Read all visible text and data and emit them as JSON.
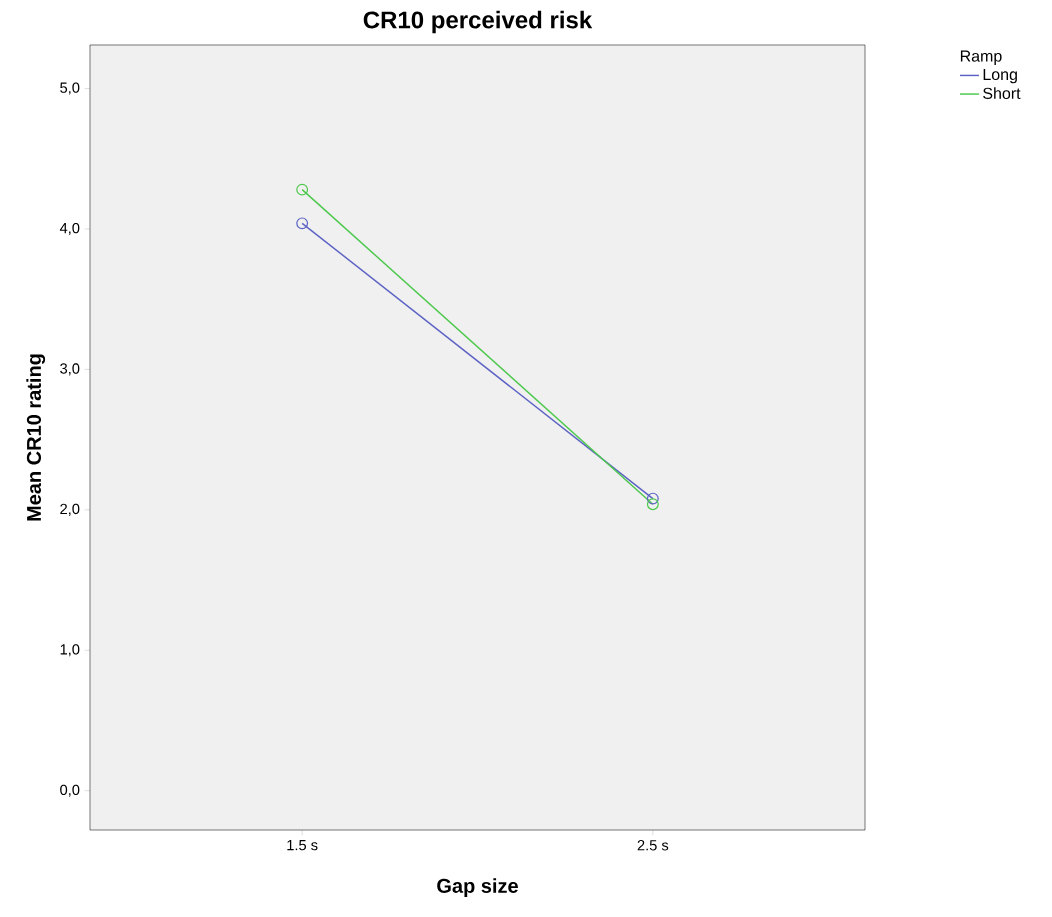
{
  "chart_data": {
    "type": "line",
    "title": "CR10 perceived risk",
    "xlabel": "Gap size",
    "ylabel": "Mean CR10 rating",
    "legend_title": "Ramp",
    "categories": [
      "1.5 s",
      "2.5 s"
    ],
    "series": [
      {
        "name": "Long",
        "color": "#5b62c4",
        "values": [
          4.04,
          2.08
        ]
      },
      {
        "name": "Short",
        "color": "#4cc84c",
        "values": [
          4.28,
          2.04
        ]
      }
    ],
    "ylim": [
      -0.28,
      5.31
    ],
    "yticks": [
      {
        "value": 0,
        "label": "0,0"
      },
      {
        "value": 1,
        "label": "1,0"
      },
      {
        "value": 2,
        "label": "2,0"
      },
      {
        "value": 3,
        "label": "3,0"
      },
      {
        "value": 4,
        "label": "4,0"
      },
      {
        "value": 5,
        "label": "5,0"
      }
    ],
    "marker": "circle",
    "line_style": "solid",
    "grid": false,
    "legend": "top right"
  }
}
